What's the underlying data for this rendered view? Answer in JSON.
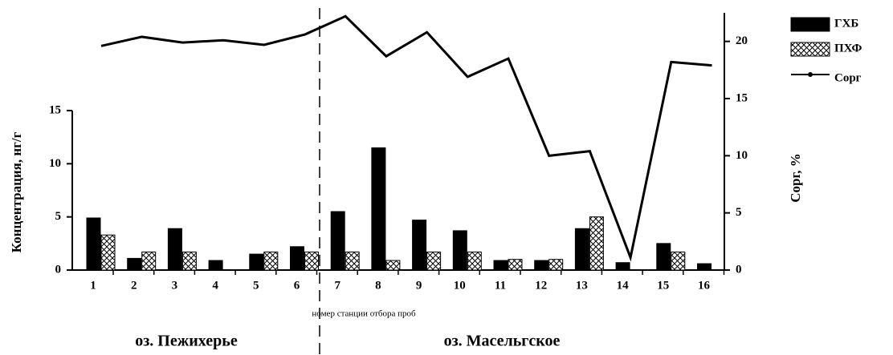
{
  "chart_data": {
    "type": "bar",
    "categories": [
      "1",
      "2",
      "3",
      "4",
      "5",
      "6",
      "7",
      "8",
      "9",
      "10",
      "11",
      "12",
      "13",
      "14",
      "15",
      "16"
    ],
    "series": [
      {
        "name": "ГХБ",
        "color": "#000000",
        "values": [
          4.9,
          1.1,
          3.9,
          0.9,
          1.5,
          2.2,
          5.5,
          11.5,
          4.7,
          3.7,
          0.9,
          0.9,
          3.9,
          0.7,
          2.5,
          0.6
        ]
      },
      {
        "name": "ПХФ",
        "color": "#000000",
        "hatch": true,
        "values": [
          3.3,
          1.7,
          1.7,
          null,
          1.7,
          1.7,
          1.7,
          0.9,
          1.7,
          1.7,
          1.0,
          1.0,
          5.0,
          null,
          1.7,
          null
        ]
      },
      {
        "name": "Сорг",
        "type": "line",
        "axis": "y2",
        "color": "#000000",
        "values": [
          19.6,
          20.4,
          19.9,
          20.1,
          19.7,
          20.6,
          22.2,
          18.7,
          20.8,
          16.9,
          18.5,
          10.0,
          10.4,
          1.1,
          18.2,
          17.9
        ]
      }
    ],
    "ylim": [
      0,
      15
    ],
    "yticks": [
      0,
      5,
      10,
      15
    ],
    "y2lim": [
      0,
      22.5
    ],
    "y2ticks": [
      0,
      5,
      10,
      15,
      20
    ],
    "y_label": "Концентрация, нг/г",
    "y2_label": "Сорг, %",
    "x_label": "номер станции отбора проб",
    "annotations": [
      "оз. Пежихерье",
      "оз. Масельгское"
    ],
    "legend": "top-right"
  }
}
